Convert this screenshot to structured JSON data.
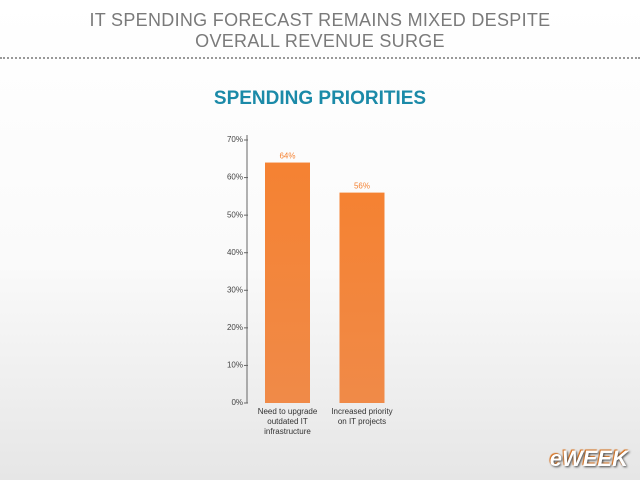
{
  "header": {
    "title": "IT SPENDING FORECAST REMAINS MIXED DESPITE OVERALL REVENUE SURGE"
  },
  "logo": "eWEEK",
  "chart_data": {
    "type": "bar",
    "title": "SPENDING PRIORITIES",
    "categories": [
      "Need to upgrade outdated IT infrastructure",
      "Increased priority on IT projects"
    ],
    "values": [
      64,
      56
    ],
    "value_labels": [
      "64%",
      "56%"
    ],
    "color": "#f58232",
    "ylim": [
      0,
      70
    ],
    "yticks": [
      {
        "value": 0,
        "label": "0%"
      },
      {
        "value": 10,
        "label": "10%"
      },
      {
        "value": 20,
        "label": "20%"
      },
      {
        "value": 30,
        "label": "30%"
      },
      {
        "value": 40,
        "label": "40%"
      },
      {
        "value": 50,
        "label": "50%"
      },
      {
        "value": 60,
        "label": "60%"
      },
      {
        "value": 70,
        "label": "70%"
      }
    ],
    "grid": false
  }
}
